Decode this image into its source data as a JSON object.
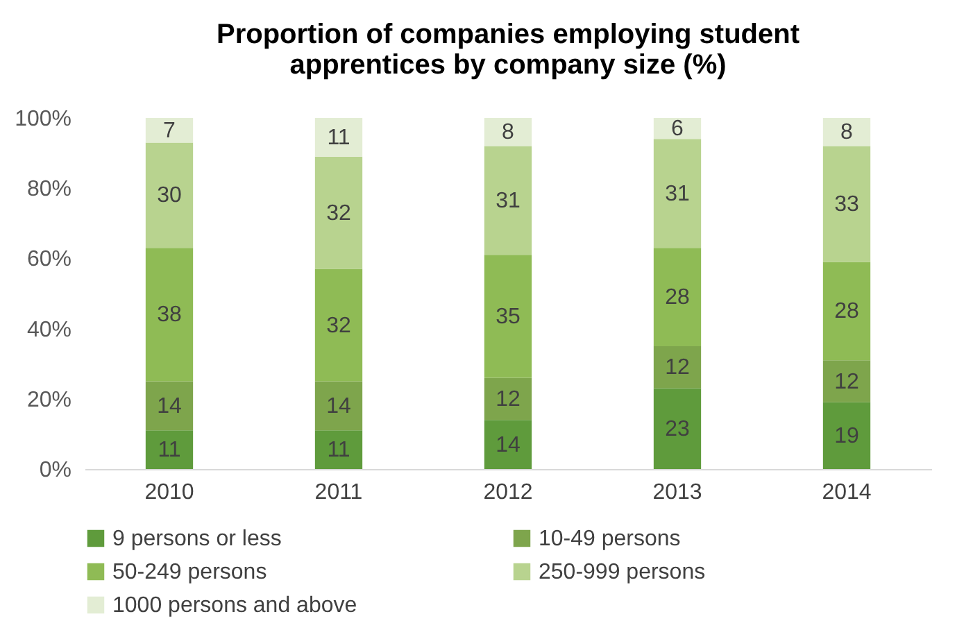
{
  "chart_data": {
    "type": "bar",
    "title": "Proportion of companies employing student apprentices by company size (%)",
    "categories": [
      "2010",
      "2011",
      "2012",
      "2013",
      "2014"
    ],
    "stacked": true,
    "data_labels": true,
    "legend": "bottom",
    "grid": false,
    "ylim": [
      0,
      100
    ],
    "yticks": [
      {
        "value": 0,
        "label": "0%"
      },
      {
        "value": 20,
        "label": "20%"
      },
      {
        "value": 40,
        "label": "40%"
      },
      {
        "value": 60,
        "label": "60%"
      },
      {
        "value": 80,
        "label": "80%"
      },
      {
        "value": 100,
        "label": "100%"
      }
    ],
    "series": [
      {
        "name": "9 persons or less",
        "color": "#5f9b3c",
        "values": [
          11,
          11,
          14,
          23,
          19
        ]
      },
      {
        "name": "10-49 persons",
        "color": "#7ea54c",
        "values": [
          14,
          14,
          12,
          12,
          12
        ]
      },
      {
        "name": "50-249 persons",
        "color": "#8fbb55",
        "values": [
          38,
          32,
          35,
          28,
          28
        ]
      },
      {
        "name": "250-999 persons",
        "color": "#b8d38f",
        "values": [
          30,
          32,
          31,
          31,
          33
        ]
      },
      {
        "name": "1000 persons and above",
        "color": "#e3edd4",
        "values": [
          7,
          11,
          8,
          6,
          8
        ]
      }
    ]
  }
}
